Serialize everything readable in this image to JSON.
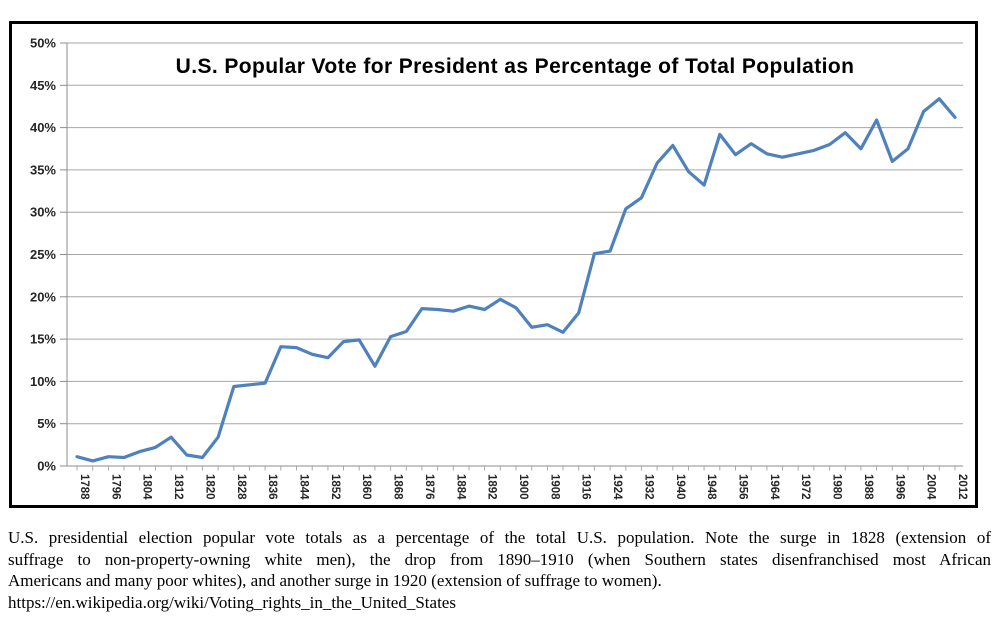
{
  "page": {
    "background": "#ffffff"
  },
  "chart": {
    "frame_border_color": "#000000",
    "plot": {
      "grid_color": "#a6a6a6",
      "axis_color": "#8c8c8c",
      "tick_color": "#a8a8a8",
      "label_color": "#262626",
      "background": "#ffffff"
    }
  },
  "chart_data": {
    "type": "line",
    "title": "U.S. Popular Vote for President as Percentage of Total Population",
    "xlabel": "",
    "ylabel": "",
    "ylim": [
      0,
      50
    ],
    "ytick_step": 5,
    "ytick_suffix": "%",
    "grid": "horizontal",
    "legend": "none",
    "line_color": "#4F81BD",
    "xtick_label_every": 2,
    "x": [
      1788,
      1792,
      1796,
      1800,
      1804,
      1808,
      1812,
      1816,
      1820,
      1824,
      1828,
      1832,
      1836,
      1840,
      1844,
      1848,
      1852,
      1856,
      1860,
      1864,
      1868,
      1872,
      1876,
      1880,
      1884,
      1888,
      1892,
      1896,
      1900,
      1904,
      1908,
      1912,
      1916,
      1920,
      1924,
      1928,
      1932,
      1936,
      1940,
      1944,
      1948,
      1952,
      1956,
      1960,
      1964,
      1968,
      1972,
      1976,
      1980,
      1984,
      1988,
      1992,
      1996,
      2000,
      2004,
      2008,
      2012
    ],
    "values": [
      1.1,
      0.6,
      1.1,
      1.0,
      1.7,
      2.2,
      3.4,
      1.3,
      1.0,
      3.4,
      9.4,
      9.6,
      9.8,
      14.1,
      14.0,
      13.2,
      12.8,
      14.7,
      14.9,
      11.8,
      15.3,
      15.9,
      18.6,
      18.5,
      18.3,
      18.9,
      18.5,
      19.7,
      18.7,
      16.4,
      16.7,
      15.8,
      18.1,
      25.1,
      25.4,
      30.4,
      31.7,
      35.8,
      37.9,
      34.8,
      33.2,
      39.2,
      36.8,
      38.1,
      36.9,
      36.5,
      36.9,
      37.3,
      38.0,
      39.4,
      37.5,
      40.9,
      36.0,
      37.5,
      41.9,
      43.4,
      41.2
    ]
  },
  "caption": {
    "lines": [
      "U.S. presidential election popular vote totals as a percentage of the total U.S. population. Note the surge in 1828 (extension of",
      "suffrage to non-property-owning white men), the drop from 1890–1910 (when Southern states disenfranchised most African",
      "Americans and many poor whites), and another surge in 1920 (extension of suffrage to women)."
    ],
    "url": "https://en.wikipedia.org/wiki/Voting_rights_in_the_United_States"
  }
}
